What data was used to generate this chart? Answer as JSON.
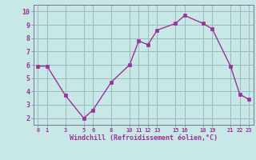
{
  "x": [
    0,
    1,
    3,
    5,
    6,
    8,
    10,
    11,
    12,
    13,
    15,
    16,
    18,
    19,
    21,
    22,
    23
  ],
  "y": [
    5.9,
    5.9,
    3.7,
    2.0,
    2.6,
    4.7,
    6.0,
    7.8,
    7.5,
    8.6,
    9.1,
    9.7,
    9.1,
    8.7,
    5.9,
    3.8,
    3.4
  ],
  "xticks": [
    0,
    1,
    3,
    5,
    6,
    8,
    10,
    11,
    12,
    13,
    15,
    16,
    18,
    19,
    21,
    22,
    23
  ],
  "xtick_labels": [
    "0",
    "1",
    "3",
    "5",
    "6",
    "8",
    "10",
    "11",
    "12",
    "13",
    "15",
    "16",
    "18",
    "19",
    "21",
    "22",
    "23"
  ],
  "yticks": [
    2,
    3,
    4,
    5,
    6,
    7,
    8,
    9,
    10
  ],
  "ylim": [
    1.5,
    10.5
  ],
  "xlim": [
    -0.5,
    23.5
  ],
  "line_color": "#993399",
  "marker_color": "#993399",
  "bg_color": "#c8e8e8",
  "grid_color": "#99bbbb",
  "xlabel": "Windchill (Refroidissement éolien,°C)",
  "xlabel_color": "#993399",
  "tick_color": "#993399",
  "spine_color": "#777799",
  "title": ""
}
